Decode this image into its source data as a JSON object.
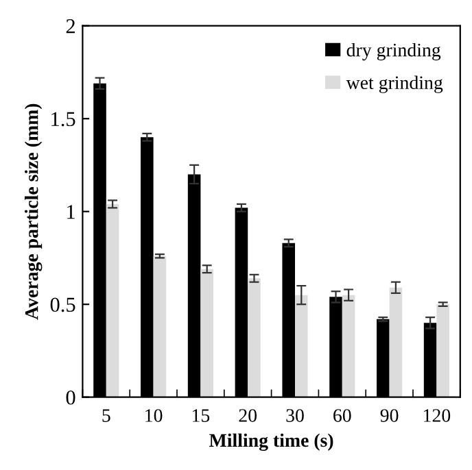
{
  "chart_data": {
    "type": "bar",
    "xlabel": "Milling time (s)",
    "ylabel": "Average particle size (mm)",
    "categories": [
      "5",
      "10",
      "15",
      "20",
      "30",
      "60",
      "90",
      "120"
    ],
    "series": [
      {
        "name": "dry grinding",
        "color": "#000000",
        "values": [
          1.69,
          1.4,
          1.2,
          1.02,
          0.83,
          0.54,
          0.42,
          0.4
        ],
        "errors": [
          0.03,
          0.02,
          0.05,
          0.02,
          0.02,
          0.03,
          0.01,
          0.03
        ]
      },
      {
        "name": "wet grinding",
        "color": "#dcdcdc",
        "values": [
          1.04,
          0.76,
          0.69,
          0.64,
          0.55,
          0.55,
          0.59,
          0.5
        ],
        "errors": [
          0.02,
          0.01,
          0.02,
          0.02,
          0.05,
          0.03,
          0.03,
          0.01
        ]
      }
    ],
    "ylim": [
      0,
      2
    ],
    "yticks": [
      0,
      0.5,
      1,
      1.5,
      2
    ],
    "grid": false,
    "legend": "top right"
  }
}
